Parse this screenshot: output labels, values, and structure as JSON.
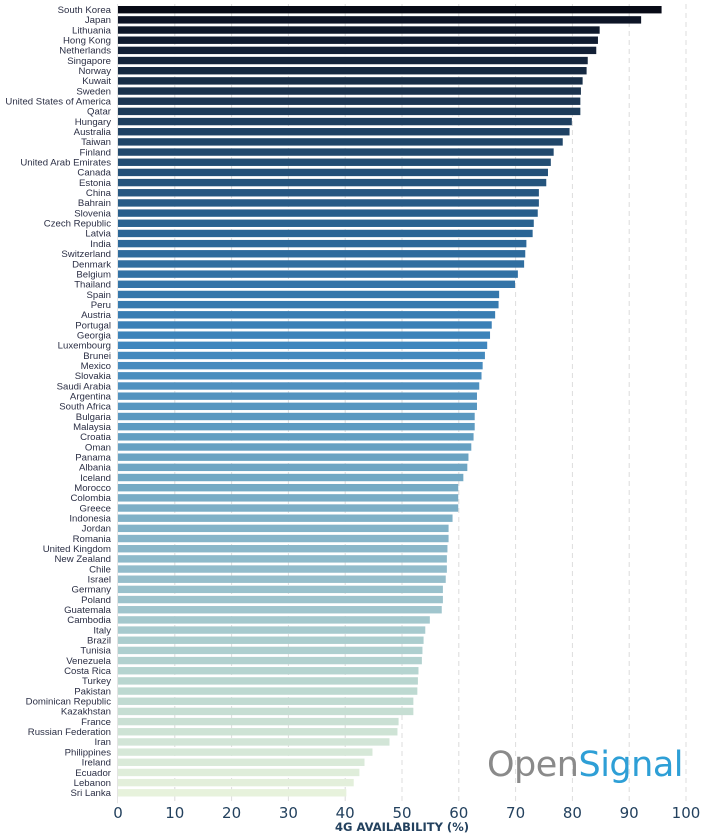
{
  "chart_data": {
    "type": "bar",
    "orientation": "horizontal",
    "title": "",
    "xlabel": "4G AVAILABILITY (%)",
    "ylabel": "",
    "xlim": [
      0,
      100
    ],
    "xticks": [
      0,
      10,
      20,
      30,
      40,
      50,
      60,
      70,
      80,
      90,
      100
    ],
    "grid": "vertical dashed",
    "legend": "none",
    "color_scale": [
      "#0b0f1e",
      "#1e3f5f",
      "#2a6595",
      "#3f86bd",
      "#6aa3c2",
      "#92bccb",
      "#b9d6d0",
      "#e7f2dc"
    ],
    "categories": [
      "South Korea",
      "Japan",
      "Lithuania",
      "Hong Kong",
      "Netherlands",
      "Singapore",
      "Norway",
      "Kuwait",
      "Sweden",
      "United States of America",
      "Qatar",
      "Hungary",
      "Australia",
      "Taiwan",
      "Finland",
      "United Arab Emirates",
      "Canada",
      "Estonia",
      "China",
      "Bahrain",
      "Slovenia",
      "Czech Republic",
      "Latvia",
      "India",
      "Switzerland",
      "Denmark",
      "Belgium",
      "Thailand",
      "Spain",
      "Peru",
      "Austria",
      "Portugal",
      "Georgia",
      "Luxembourg",
      "Brunei",
      "Mexico",
      "Slovakia",
      "Saudi Arabia",
      "Argentina",
      "South Africa",
      "Bulgaria",
      "Malaysia",
      "Croatia",
      "Oman",
      "Panama",
      "Albania",
      "Iceland",
      "Morocco",
      "Colombia",
      "Greece",
      "Indonesia",
      "Jordan",
      "Romania",
      "United Kingdom",
      "New Zealand",
      "Chile",
      "Israel",
      "Germany",
      "Poland",
      "Guatemala",
      "Cambodia",
      "Italy",
      "Brazil",
      "Tunisia",
      "Venezuela",
      "Costa Rica",
      "Turkey",
      "Pakistan",
      "Dominican Republic",
      "Kazakhstan",
      "France",
      "Russian Federation",
      "Iran",
      "Philippines",
      "Ireland",
      "Ecuador",
      "Lebanon",
      "Sri Lanka"
    ],
    "values": [
      95.7,
      92.1,
      84.8,
      84.5,
      84.2,
      82.7,
      82.5,
      81.8,
      81.5,
      81.4,
      81.4,
      79.9,
      79.5,
      78.3,
      76.7,
      76.2,
      75.7,
      75.4,
      74.1,
      74.1,
      73.9,
      73.2,
      73.0,
      71.9,
      71.7,
      71.5,
      70.4,
      69.9,
      67.1,
      67.0,
      66.4,
      65.8,
      65.5,
      65.0,
      64.6,
      64.2,
      64.0,
      63.6,
      63.2,
      63.2,
      62.8,
      62.8,
      62.6,
      62.2,
      61.7,
      61.5,
      60.8,
      59.9,
      59.9,
      59.9,
      58.9,
      58.2,
      58.2,
      58.0,
      57.9,
      57.9,
      57.7,
      57.2,
      57.2,
      57.0,
      54.9,
      54.1,
      53.8,
      53.6,
      53.5,
      52.9,
      52.8,
      52.7,
      52.0,
      52.0,
      49.4,
      49.2,
      47.8,
      44.8,
      43.4,
      42.5,
      41.5,
      40.2
    ]
  },
  "logo": {
    "part1": "Open",
    "part2": "Signal"
  }
}
